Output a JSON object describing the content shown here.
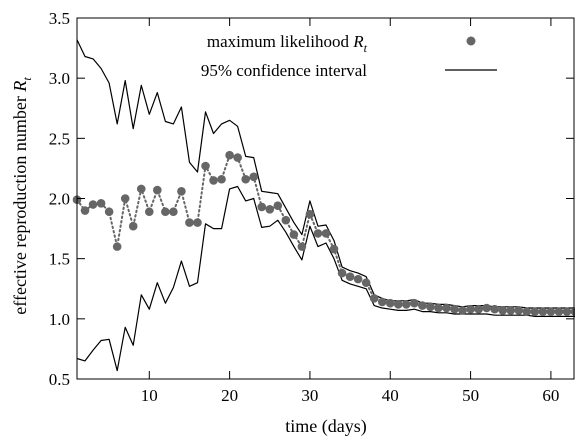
{
  "chart_data": {
    "type": "line",
    "xlabel": "time (days)",
    "ylabel": "effective reproduction number ",
    "ylabel_symbol": "R",
    "ylabel_subscript": "t",
    "xlim": [
      1,
      63
    ],
    "ylim": [
      0.5,
      3.5
    ],
    "xticks": [
      10,
      20,
      30,
      40,
      50,
      60
    ],
    "yticks": [
      0.5,
      1.0,
      1.5,
      2.0,
      2.5,
      3.0,
      3.5
    ],
    "ytick_labels": [
      "0.5",
      "1.0",
      "1.5",
      "2.0",
      "2.5",
      "3.0",
      "3.5"
    ],
    "grid": false,
    "legend_position": "top-right",
    "x": [
      1,
      2,
      3,
      4,
      5,
      6,
      7,
      8,
      9,
      10,
      11,
      12,
      13,
      14,
      15,
      16,
      17,
      18,
      19,
      20,
      21,
      22,
      23,
      24,
      25,
      26,
      27,
      28,
      29,
      30,
      31,
      32,
      33,
      34,
      35,
      36,
      37,
      38,
      39,
      40,
      41,
      42,
      43,
      44,
      45,
      46,
      47,
      48,
      49,
      50,
      51,
      52,
      53,
      54,
      55,
      56,
      57,
      58,
      59,
      60,
      61,
      62,
      63
    ],
    "series": [
      {
        "name": "maximum likelihood ",
        "name_symbol": "R",
        "name_subscript": "t",
        "style": "dotted-points",
        "color": "#666666",
        "values": [
          1.99,
          1.9,
          1.95,
          1.96,
          1.89,
          1.6,
          2.0,
          1.77,
          2.08,
          1.89,
          2.07,
          1.89,
          1.89,
          2.06,
          1.8,
          1.8,
          2.27,
          2.15,
          2.16,
          2.36,
          2.34,
          2.16,
          2.18,
          1.93,
          1.91,
          1.94,
          1.82,
          1.7,
          1.6,
          1.87,
          1.71,
          1.71,
          1.58,
          1.38,
          1.35,
          1.33,
          1.3,
          1.17,
          1.14,
          1.13,
          1.12,
          1.12,
          1.13,
          1.11,
          1.1,
          1.09,
          1.09,
          1.08,
          1.07,
          1.08,
          1.08,
          1.09,
          1.08,
          1.07,
          1.07,
          1.07,
          1.06,
          1.06,
          1.06,
          1.06,
          1.06,
          1.06,
          1.06
        ]
      },
      {
        "name": "95% confidence interval",
        "style": "line",
        "color": "#000000",
        "upper": [
          3.32,
          3.18,
          3.16,
          3.08,
          2.96,
          2.62,
          2.98,
          2.58,
          2.94,
          2.7,
          2.88,
          2.64,
          2.62,
          2.76,
          2.3,
          2.22,
          2.72,
          2.54,
          2.62,
          2.65,
          2.6,
          2.35,
          2.34,
          2.06,
          2.05,
          2.04,
          1.92,
          1.8,
          1.7,
          1.98,
          1.77,
          1.78,
          1.65,
          1.43,
          1.4,
          1.38,
          1.35,
          1.2,
          1.17,
          1.15,
          1.15,
          1.15,
          1.16,
          1.13,
          1.13,
          1.12,
          1.12,
          1.11,
          1.1,
          1.11,
          1.11,
          1.11,
          1.1,
          1.1,
          1.1,
          1.1,
          1.09,
          1.09,
          1.09,
          1.09,
          1.09,
          1.09,
          1.09
        ],
        "lower": [
          0.67,
          0.65,
          0.74,
          0.82,
          0.83,
          0.57,
          0.93,
          0.78,
          1.2,
          1.08,
          1.3,
          1.13,
          1.26,
          1.48,
          1.27,
          1.3,
          1.79,
          1.75,
          1.75,
          2.08,
          2.1,
          1.98,
          2.0,
          1.76,
          1.77,
          1.82,
          1.72,
          1.6,
          1.49,
          1.77,
          1.6,
          1.63,
          1.5,
          1.32,
          1.29,
          1.27,
          1.25,
          1.11,
          1.09,
          1.08,
          1.07,
          1.07,
          1.08,
          1.06,
          1.06,
          1.05,
          1.05,
          1.04,
          1.04,
          1.04,
          1.04,
          1.04,
          1.03,
          1.03,
          1.03,
          1.03,
          1.03,
          1.02,
          1.02,
          1.02,
          1.02,
          1.02,
          1.02
        ]
      }
    ]
  }
}
